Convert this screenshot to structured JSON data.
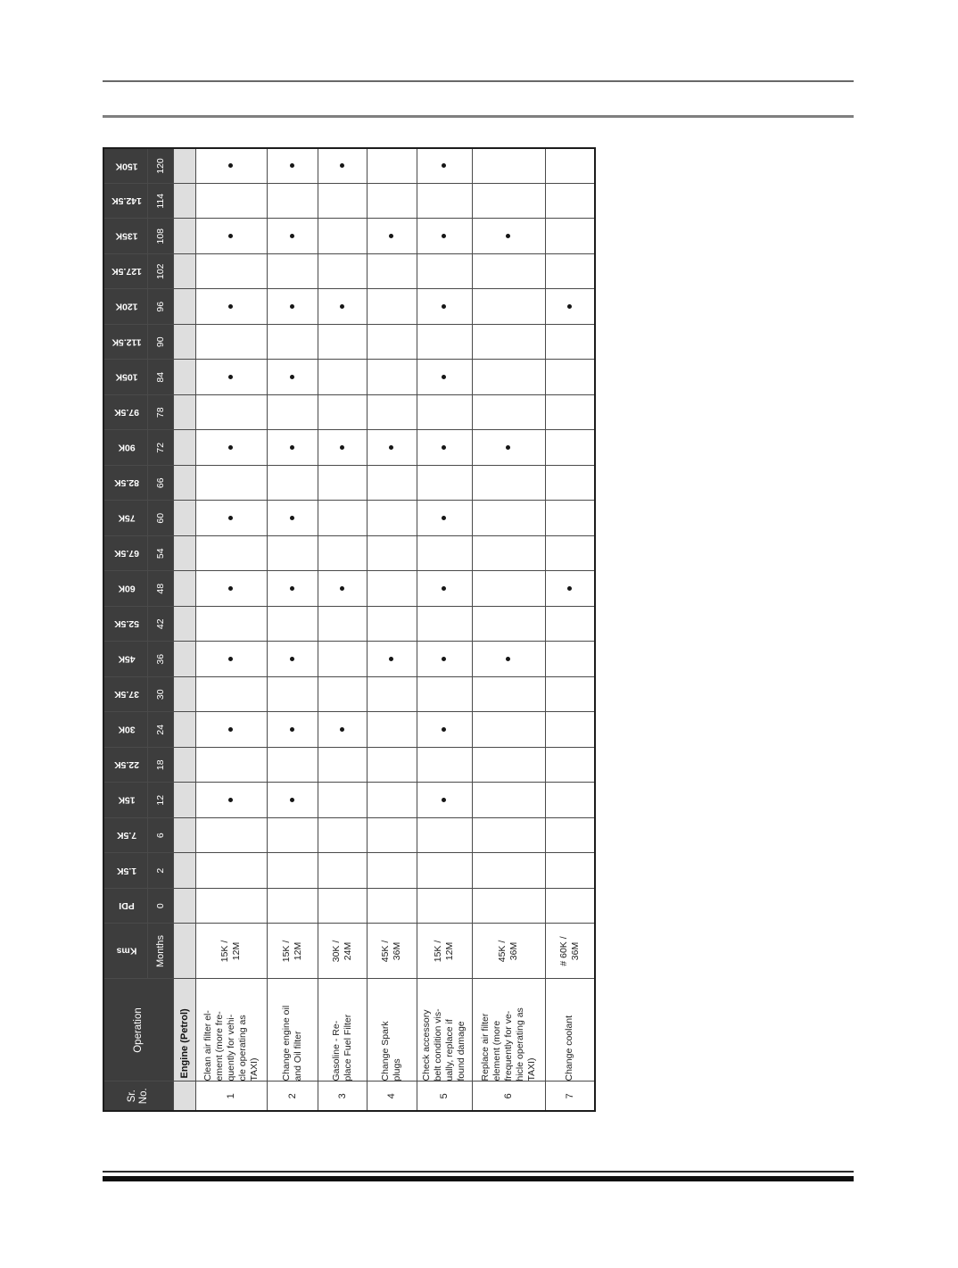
{
  "table": {
    "sr_header": "Sr.\nNo.",
    "operation_header": "Operation",
    "kms_header": "Kms",
    "months_header": "Months",
    "section_title": "Engine (Petrol)",
    "columns": [
      {
        "kms": "PDI",
        "months": "0"
      },
      {
        "kms": "1.5K",
        "months": "2"
      },
      {
        "kms": "7.5K",
        "months": "6"
      },
      {
        "kms": "15K",
        "months": "12"
      },
      {
        "kms": "22.5K",
        "months": "18"
      },
      {
        "kms": "30K",
        "months": "24"
      },
      {
        "kms": "37.5K",
        "months": "30"
      },
      {
        "kms": "45K",
        "months": "36"
      },
      {
        "kms": "52.5K",
        "months": "42"
      },
      {
        "kms": "60K",
        "months": "48"
      },
      {
        "kms": "67.5K",
        "months": "54"
      },
      {
        "kms": "75K",
        "months": "60"
      },
      {
        "kms": "82.5K",
        "months": "66"
      },
      {
        "kms": "90K",
        "months": "72"
      },
      {
        "kms": "97.5K",
        "months": "78"
      },
      {
        "kms": "105K",
        "months": "84"
      },
      {
        "kms": "112.5K",
        "months": "90"
      },
      {
        "kms": "120K",
        "months": "96"
      },
      {
        "kms": "127.5K",
        "months": "102"
      },
      {
        "kms": "135K",
        "months": "108"
      },
      {
        "kms": "142.5K",
        "months": "114"
      },
      {
        "kms": "150K",
        "months": "120"
      }
    ],
    "rows": [
      {
        "sr": "1",
        "operation": "Clean air filter el-\nement (more fre-\nquently for vehi-\ncle operating as\nTAXI)",
        "frequency": "15K /\n12M",
        "dot_months": [
          12,
          24,
          36,
          48,
          60,
          72,
          84,
          96,
          108,
          120
        ]
      },
      {
        "sr": "2",
        "operation": "Change engine oil\nand Oil filter",
        "frequency": "15K /\n12M",
        "dot_months": [
          12,
          24,
          36,
          48,
          60,
          72,
          84,
          96,
          108,
          120
        ]
      },
      {
        "sr": "3",
        "operation": "Gasoline - Re-\nplace Fuel Filter",
        "frequency": "30K /\n24M",
        "dot_months": [
          24,
          48,
          72,
          96,
          120
        ]
      },
      {
        "sr": "4",
        "operation": "Change Spark\nplugs",
        "frequency": "45K /\n36M",
        "dot_months": [
          36,
          72,
          108
        ]
      },
      {
        "sr": "5",
        "operation": "Check accessory\nbelt condition vis-\nually, replace if\nfound damage",
        "frequency": "15K /\n12M",
        "dot_months": [
          12,
          24,
          36,
          48,
          60,
          72,
          84,
          96,
          108,
          120
        ]
      },
      {
        "sr": "6",
        "operation": "Replace air filter\nelement (more\nfrequently for ve-\nhicle operating as\nTAXI)",
        "frequency": "45K /\n36M",
        "dot_months": [
          36,
          72,
          108
        ]
      },
      {
        "sr": "7",
        "operation": "Change coolant",
        "frequency": "# 60K /\n36M",
        "dot_months": [
          48,
          96
        ]
      }
    ],
    "colors": {
      "header_bg": "#3d3d3d",
      "header_text": "#ffffff",
      "section_bg": "#dedede",
      "grid_line": "#4a4a4a",
      "dot": "#161616"
    }
  }
}
